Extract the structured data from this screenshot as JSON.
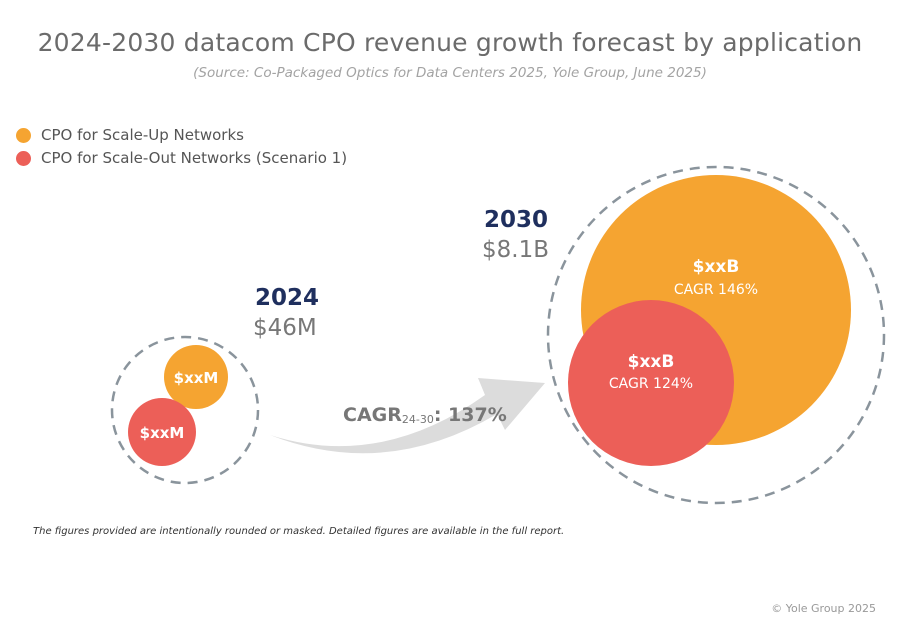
{
  "title": "2024-2030 datacom CPO revenue growth forecast by application",
  "subtitle": "(Source: Co-Packaged Optics for Data Centers 2025, Yole Group, June 2025)",
  "legend": [
    {
      "label": "CPO for Scale-Up Networks",
      "color": "#f5a431"
    },
    {
      "label": "CPO for Scale-Out Networks (Scenario 1)",
      "color": "#ec5f58"
    }
  ],
  "y2024": {
    "year": "2024",
    "total": "$46M",
    "scale_up_value": "$xxM",
    "scale_out_value": "$xxM"
  },
  "y2030": {
    "year": "2030",
    "total": "$8.1B",
    "scale_up_value": "$xxB",
    "scale_up_cagr": "CAGR 146%",
    "scale_out_value": "$xxB",
    "scale_out_cagr": "CAGR 124%"
  },
  "growth": {
    "prefix": "CAGR",
    "period": "24-30",
    "value": ": 137%"
  },
  "footnote": "The figures provided are intentionally rounded or masked. Detailed figures are available in the full report.",
  "copyright": "© Yole Group 2025"
}
